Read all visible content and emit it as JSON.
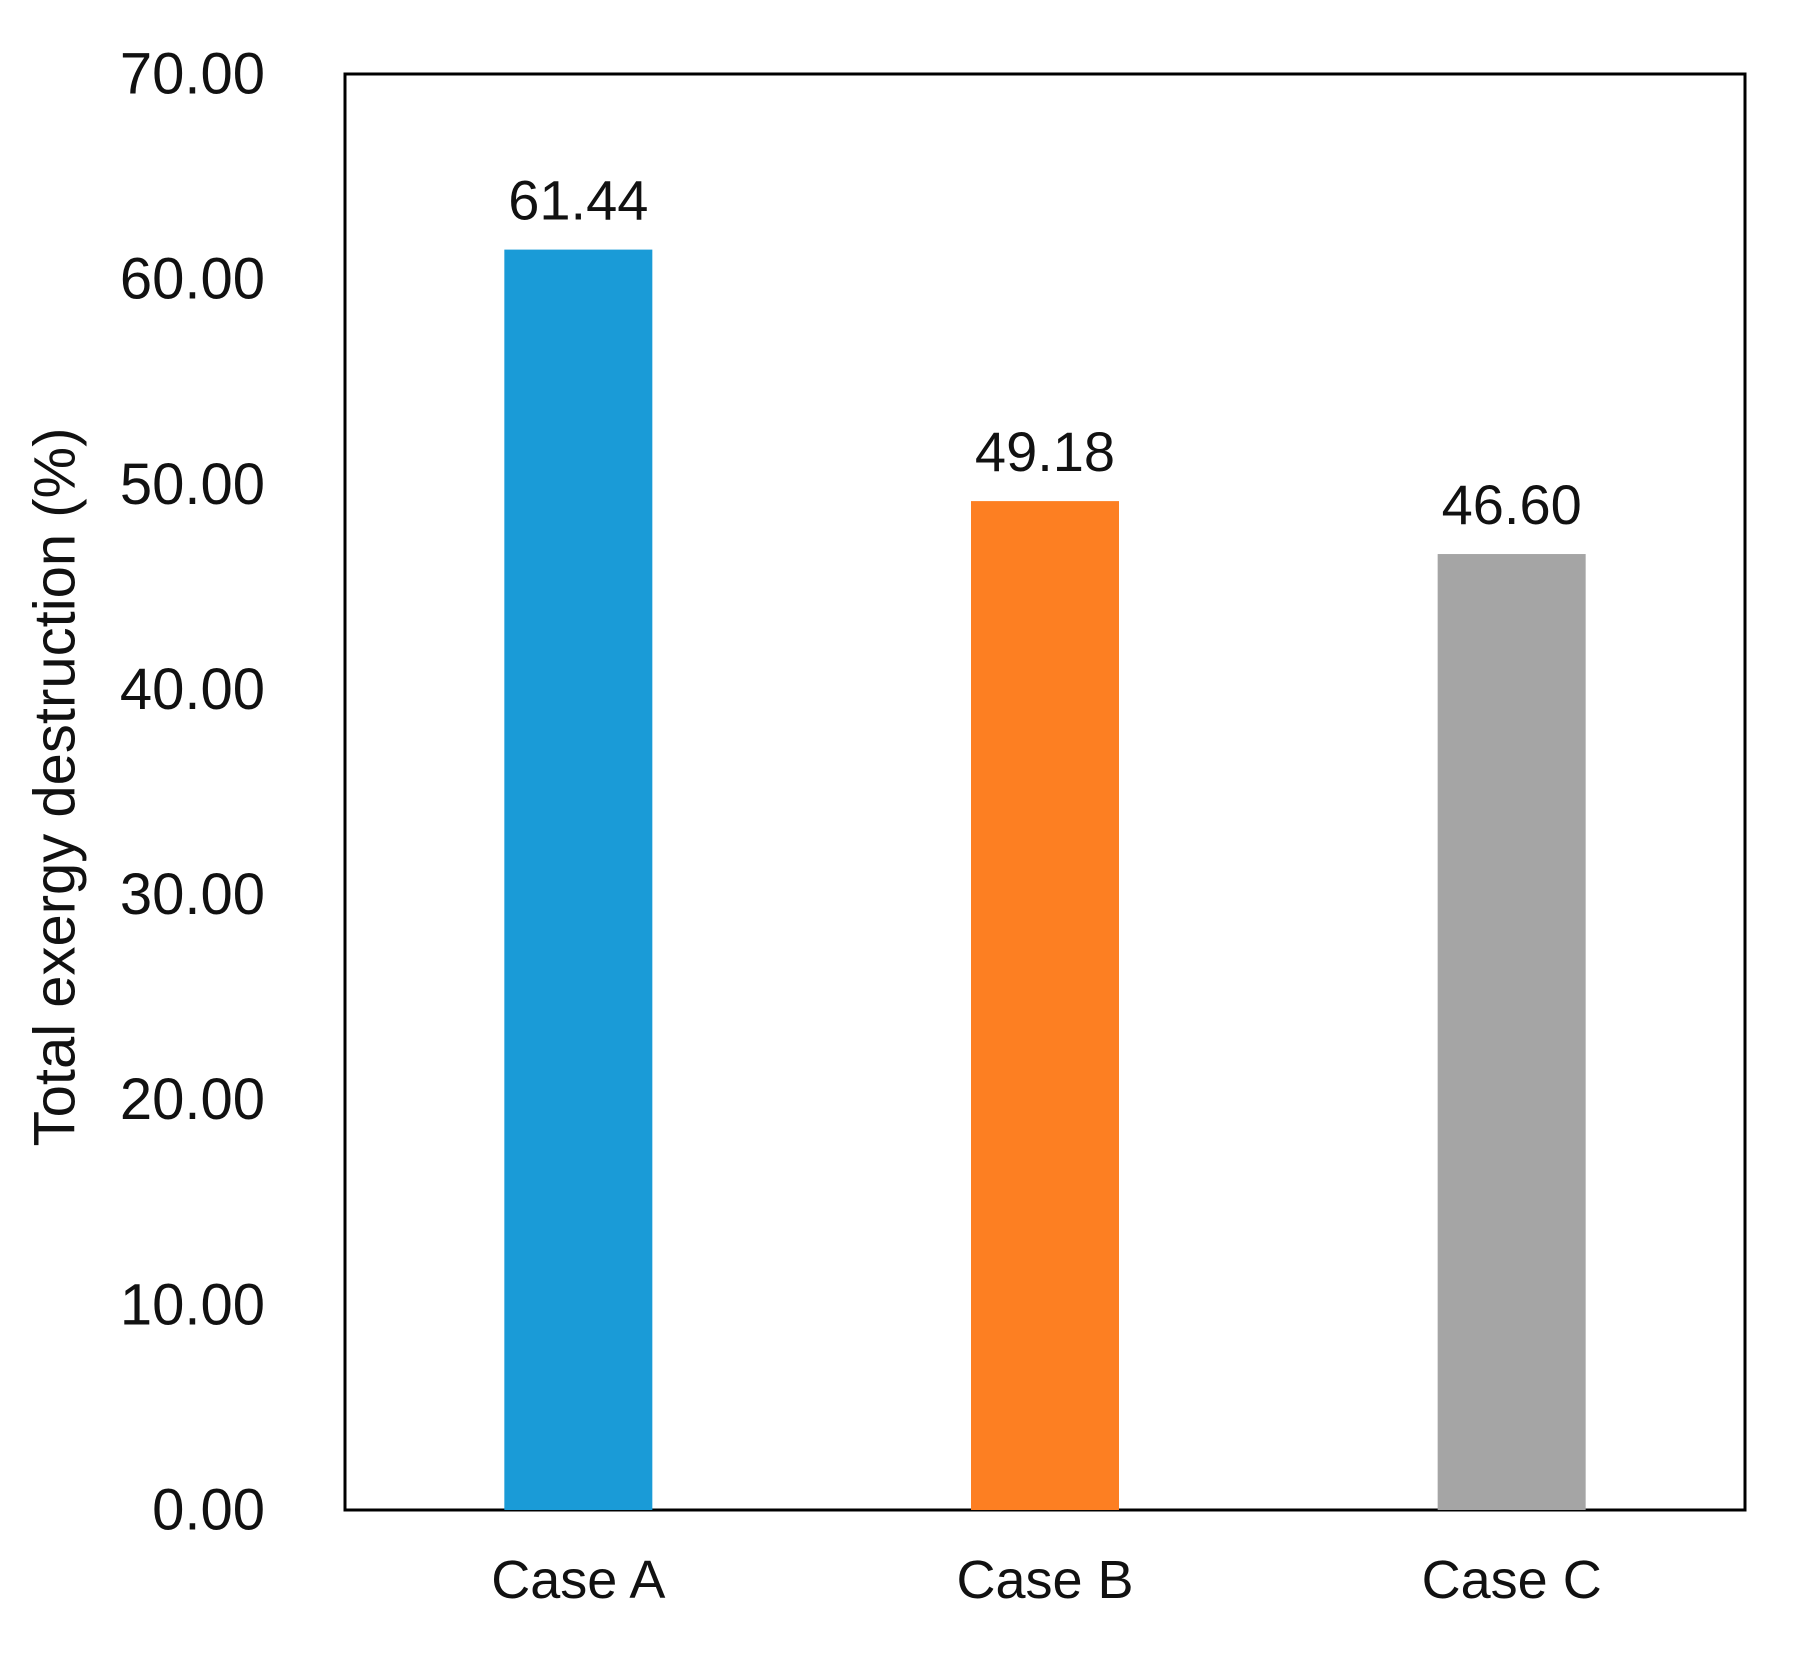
{
  "chart_data": {
    "type": "bar",
    "title": "",
    "xlabel": "",
    "ylabel": "Total exergy destruction (%)",
    "categories": [
      "Case A",
      "Case B",
      "Case C"
    ],
    "values": [
      61.44,
      49.18,
      46.6
    ],
    "value_labels": [
      "61.44",
      "49.18",
      "46.60"
    ],
    "colors": [
      "#1a9bd7",
      "#fd7f22",
      "#a5a5a5"
    ],
    "ylim": [
      0,
      70
    ],
    "yticks": [
      0,
      10,
      20,
      30,
      40,
      50,
      60,
      70
    ],
    "ytick_labels": [
      "0.00",
      "10.00",
      "20.00",
      "30.00",
      "40.00",
      "50.00",
      "60.00",
      "70.00"
    ],
    "grid": false,
    "legend": "none"
  }
}
